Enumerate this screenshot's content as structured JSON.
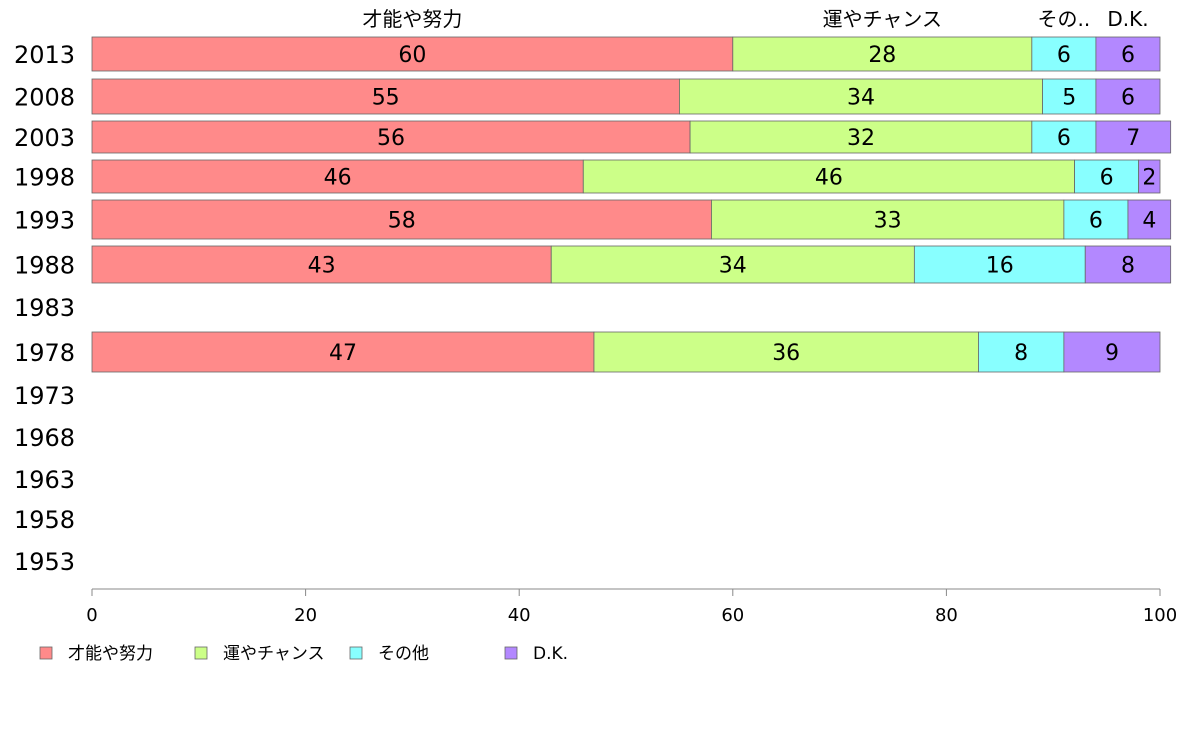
{
  "chart_data": {
    "type": "bar",
    "orientation": "horizontal",
    "stacked": true,
    "categories": [
      "2013",
      "2008",
      "2003",
      "1998",
      "1993",
      "1988",
      "1983",
      "1978",
      "1973",
      "1968",
      "1963",
      "1958",
      "1953"
    ],
    "series": [
      {
        "name": "才能や努力",
        "color": "#ff8a8a",
        "values": [
          60,
          55,
          56,
          46,
          58,
          43,
          null,
          47,
          null,
          null,
          null,
          null,
          null
        ]
      },
      {
        "name": "運やチャンス",
        "color": "#ccff88",
        "values": [
          28,
          34,
          32,
          46,
          33,
          34,
          null,
          36,
          null,
          null,
          null,
          null,
          null
        ]
      },
      {
        "name": "その他",
        "color": "#88ffff",
        "values": [
          6,
          5,
          6,
          6,
          6,
          16,
          null,
          8,
          null,
          null,
          null,
          null,
          null
        ]
      },
      {
        "name": "D.K.",
        "color": "#b388ff",
        "values": [
          6,
          6,
          7,
          2,
          4,
          8,
          null,
          9,
          null,
          null,
          null,
          null,
          null
        ]
      }
    ],
    "top_labels": [
      "才能や努力",
      "運やチャンス",
      "その..",
      "D.K."
    ],
    "xlim": [
      0,
      100
    ],
    "xticks": [
      "0",
      "20",
      "40",
      "60",
      "80",
      "100"
    ],
    "legend_position": "bottom-left"
  }
}
